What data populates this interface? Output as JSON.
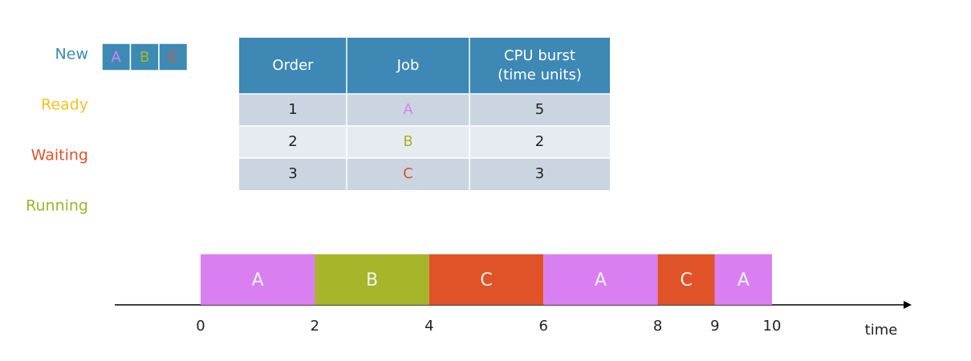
{
  "states": [
    {
      "label": "New",
      "color": "#3d8bb5"
    },
    {
      "label": "Ready",
      "color": "#f5c21b"
    },
    {
      "label": "Waiting",
      "color": "#e05227"
    },
    {
      "label": "Running",
      "color": "#9db52a"
    }
  ],
  "new_queue": [
    {
      "label": "A",
      "color": "#d97ff2"
    },
    {
      "label": "B",
      "color": "#a6b52a"
    },
    {
      "label": "C",
      "color": "#e05227"
    }
  ],
  "table": {
    "header": [
      "Order",
      "Job",
      "CPU burst\n(time units)"
    ],
    "rows": [
      [
        "1",
        "A",
        "5"
      ],
      [
        "2",
        "B",
        "2"
      ],
      [
        "3",
        "C",
        "3"
      ]
    ],
    "job_colors": [
      "#d97ff2",
      "#a6b52a",
      "#e05227"
    ]
  },
  "gantt": {
    "segments": [
      {
        "label": "A",
        "start": 0,
        "end": 2,
        "color": "#d97ff2"
      },
      {
        "label": "B",
        "start": 2,
        "end": 4,
        "color": "#a6b52a"
      },
      {
        "label": "C",
        "start": 4,
        "end": 6,
        "color": "#e05227"
      },
      {
        "label": "A",
        "start": 6,
        "end": 8,
        "color": "#d97ff2"
      },
      {
        "label": "C",
        "start": 8,
        "end": 9,
        "color": "#e05227"
      },
      {
        "label": "A",
        "start": 9,
        "end": 10,
        "color": "#d97ff2"
      }
    ],
    "ticks": [
      0,
      2,
      4,
      6,
      8,
      9,
      10
    ],
    "xlim": [
      0,
      10
    ],
    "axis_label": "time"
  }
}
